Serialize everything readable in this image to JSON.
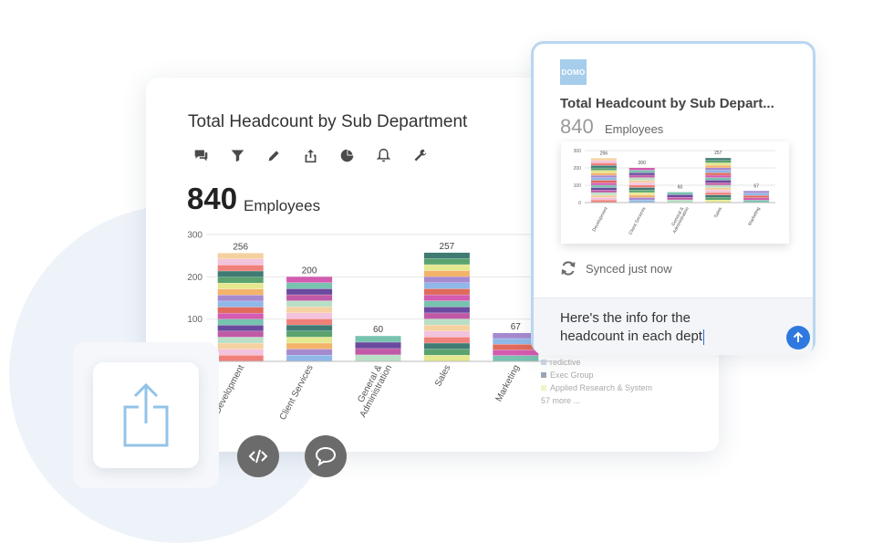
{
  "card": {
    "title": "Total Headcount by Sub Department",
    "count": "840",
    "unit": "Employees",
    "toolbar_icons": [
      "chat-icon",
      "filter-icon",
      "pencil-icon",
      "export-icon",
      "pie-chart-icon",
      "bell-icon",
      "wrench-icon"
    ]
  },
  "chart_data": {
    "type": "bar",
    "categories": [
      "Development",
      "Client Services",
      "General & Administration",
      "Sales",
      "Marketing"
    ],
    "values": [
      256,
      200,
      60,
      257,
      67
    ],
    "ylim": [
      0,
      300
    ],
    "yticks": [
      "0",
      "100",
      "200",
      "300"
    ],
    "stacked": true,
    "grid": true
  },
  "legend": {
    "items": [
      "redictive",
      "Exec Group",
      "Applied Research & System"
    ],
    "more": "57 more ..."
  },
  "popup": {
    "logo_text": "DOMO",
    "title": "Total Headcount by Sub Depart...",
    "count": "840",
    "unit": "Employees",
    "synced": "Synced just now",
    "message_line1": "Here's the info for the",
    "message_line2": "headcount in each dept"
  },
  "colors": {
    "accent": "#2f78e0",
    "popup_border": "#b9d6ef",
    "logo": "#a6cdeb",
    "segments": [
      "#f0807a",
      "#5aa36f",
      "#f4b36b",
      "#8fb8e8",
      "#d35bb0",
      "#6a4a9e",
      "#b9e0c7",
      "#f3c2dc",
      "#3f7b73",
      "#e4e88f",
      "#a68ad0",
      "#e06a5c",
      "#77c3b0",
      "#c05aa6",
      "#f5d0a0"
    ]
  }
}
